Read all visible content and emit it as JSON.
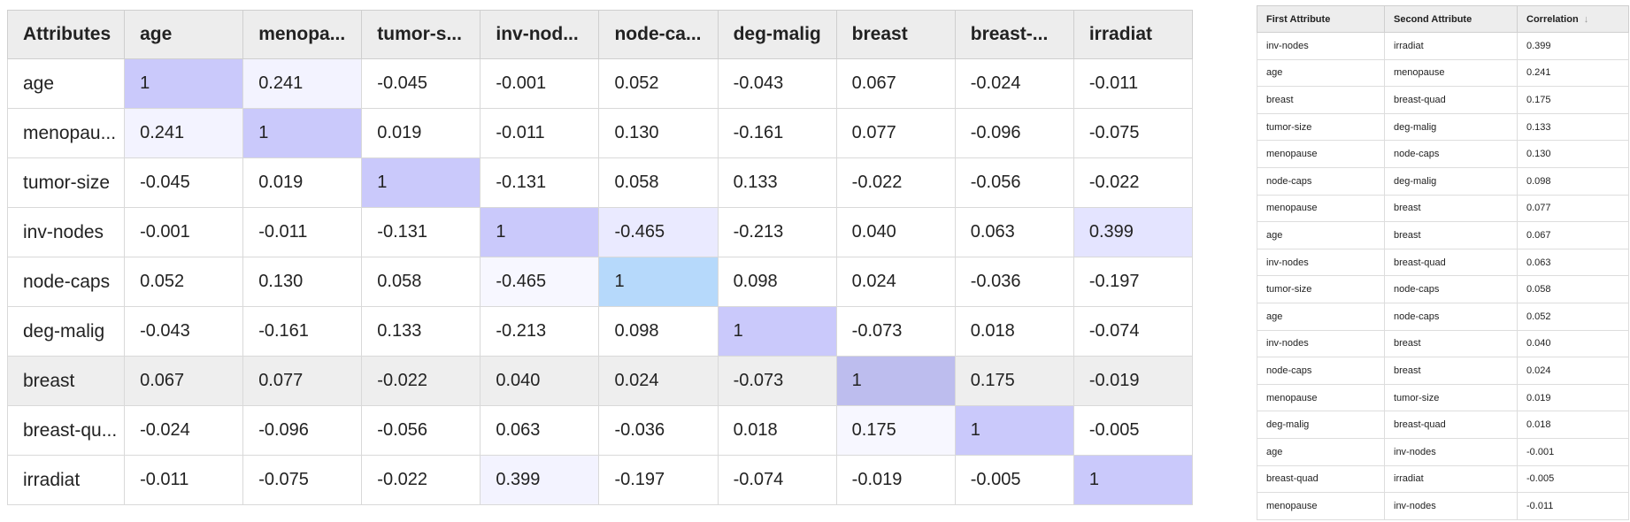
{
  "matrix": {
    "corner_header": "Attributes",
    "columns": [
      "age",
      "menopa...",
      "tumor-s...",
      "inv-nod...",
      "node-ca...",
      "deg-malig",
      "breast",
      "breast-...",
      "irradiat"
    ],
    "rows": [
      {
        "label": "age",
        "values": [
          "1",
          "0.241",
          "-0.045",
          "-0.001",
          "0.052",
          "-0.043",
          "0.067",
          "-0.024",
          "-0.011"
        ]
      },
      {
        "label": "menopau...",
        "values": [
          "0.241",
          "1",
          "0.019",
          "-0.011",
          "0.130",
          "-0.161",
          "0.077",
          "-0.096",
          "-0.075"
        ]
      },
      {
        "label": "tumor-size",
        "values": [
          "-0.045",
          "0.019",
          "1",
          "-0.131",
          "0.058",
          "0.133",
          "-0.022",
          "-0.056",
          "-0.022"
        ]
      },
      {
        "label": "inv-nodes",
        "values": [
          "-0.001",
          "-0.011",
          "-0.131",
          "1",
          "-0.465",
          "-0.213",
          "0.040",
          "0.063",
          "0.399"
        ]
      },
      {
        "label": "node-caps",
        "values": [
          "0.052",
          "0.130",
          "0.058",
          "-0.465",
          "1",
          "0.098",
          "0.024",
          "-0.036",
          "-0.197"
        ]
      },
      {
        "label": "deg-malig",
        "values": [
          "-0.043",
          "-0.161",
          "0.133",
          "-0.213",
          "0.098",
          "1",
          "-0.073",
          "0.018",
          "-0.074"
        ]
      },
      {
        "label": "breast",
        "values": [
          "0.067",
          "0.077",
          "-0.022",
          "0.040",
          "0.024",
          "-0.073",
          "1",
          "0.175",
          "-0.019"
        ]
      },
      {
        "label": "breast-qu...",
        "values": [
          "-0.024",
          "-0.096",
          "-0.056",
          "0.063",
          "-0.036",
          "0.018",
          "0.175",
          "1",
          "-0.005"
        ]
      },
      {
        "label": "irradiat",
        "values": [
          "-0.011",
          "-0.075",
          "-0.022",
          "0.399",
          "-0.197",
          "-0.074",
          "-0.019",
          "-0.005",
          "1"
        ]
      }
    ],
    "highlighted_row": "breast"
  },
  "pairwise": {
    "headers": {
      "first": "First Attribute",
      "second": "Second Attribute",
      "correlation": "Correlation"
    },
    "sort_icon": "arrow-down-icon",
    "rows": [
      {
        "first": "inv-nodes",
        "second": "irradiat",
        "corr": "0.399"
      },
      {
        "first": "age",
        "second": "menopause",
        "corr": "0.241"
      },
      {
        "first": "breast",
        "second": "breast-quad",
        "corr": "0.175"
      },
      {
        "first": "tumor-size",
        "second": "deg-malig",
        "corr": "0.133"
      },
      {
        "first": "menopause",
        "second": "node-caps",
        "corr": "0.130"
      },
      {
        "first": "node-caps",
        "second": "deg-malig",
        "corr": "0.098"
      },
      {
        "first": "menopause",
        "second": "breast",
        "corr": "0.077"
      },
      {
        "first": "age",
        "second": "breast",
        "corr": "0.067"
      },
      {
        "first": "inv-nodes",
        "second": "breast-quad",
        "corr": "0.063"
      },
      {
        "first": "tumor-size",
        "second": "node-caps",
        "corr": "0.058"
      },
      {
        "first": "age",
        "second": "node-caps",
        "corr": "0.052"
      },
      {
        "first": "inv-nodes",
        "second": "breast",
        "corr": "0.040"
      },
      {
        "first": "node-caps",
        "second": "breast",
        "corr": "0.024"
      },
      {
        "first": "menopause",
        "second": "tumor-size",
        "corr": "0.019"
      },
      {
        "first": "deg-malig",
        "second": "breast-quad",
        "corr": "0.018"
      },
      {
        "first": "age",
        "second": "inv-nodes",
        "corr": "-0.001"
      },
      {
        "first": "breast-quad",
        "second": "irradiat",
        "corr": "-0.005"
      },
      {
        "first": "menopause",
        "second": "inv-nodes",
        "corr": "-0.011"
      }
    ]
  },
  "colors": {
    "diagonal": "#cac9fb",
    "highlight_blue": "#b6d9fb",
    "header_bg": "#ededed",
    "selected_row_bg": "#eeeeee"
  }
}
